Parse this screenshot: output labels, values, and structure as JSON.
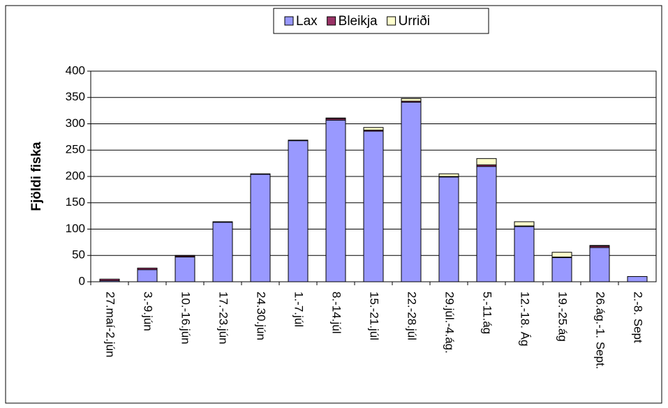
{
  "chart_data": {
    "type": "stacked_bar",
    "y_label": "Fjöldi fiska",
    "categories": [
      "27.maí-2.jún",
      "3.-9.jún",
      "10.-16.jún",
      "17.-23.jún",
      "24.30.jún",
      "1.-7.júl",
      "8.-14.júl",
      "15.-21.júl",
      "22.-28.júl",
      "29.júl.-4.ág.",
      "5.-11.ág",
      "12.-18. Ág",
      "19.-25.ág",
      "26.ág.-1. Sept.",
      "2.-8. Sept"
    ],
    "series": [
      {
        "name": "Lax",
        "color": "#9999ff",
        "values": [
          2,
          23,
          47,
          113,
          204,
          268,
          307,
          286,
          341,
          199,
          219,
          105,
          46,
          65,
          10
        ]
      },
      {
        "name": "Bleikja",
        "color": "#993366",
        "values": [
          3,
          3,
          2,
          1,
          1,
          1,
          3,
          2,
          2,
          1,
          3,
          1,
          1,
          3,
          0
        ]
      },
      {
        "name": "Urriði",
        "color": "#ffffcc",
        "values": [
          0,
          0,
          1,
          0,
          0,
          0,
          1,
          5,
          5,
          5,
          12,
          8,
          9,
          1,
          0
        ]
      }
    ],
    "ylim": [
      0,
      400
    ],
    "yticks": [
      0,
      50,
      100,
      150,
      200,
      250,
      300,
      350,
      400
    ],
    "grid": true,
    "legend": "top"
  }
}
